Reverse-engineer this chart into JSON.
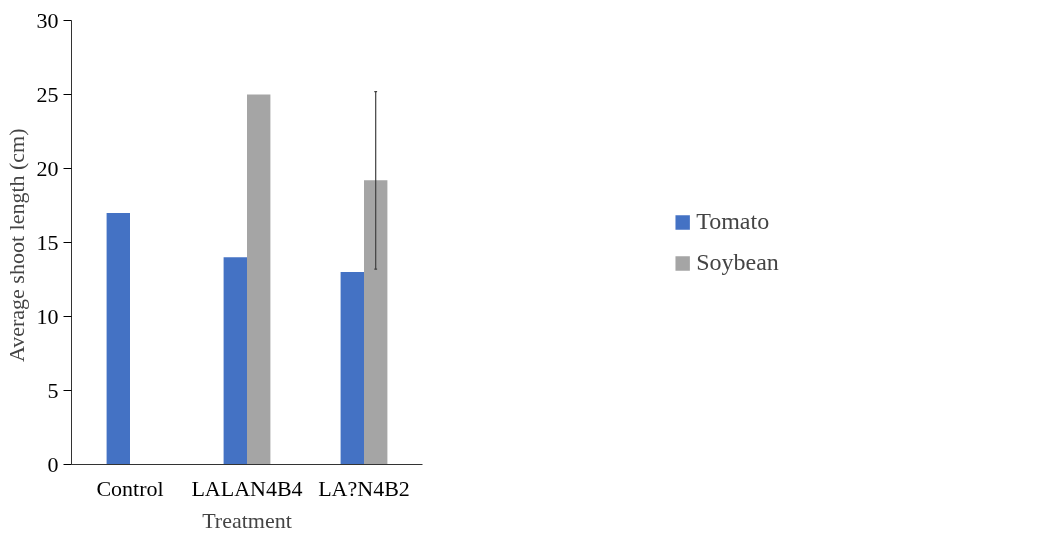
{
  "chart_data": {
    "type": "bar",
    "xlabel": "Treatment",
    "ylabel": "Average  shoot length (cm)",
    "categories": [
      "Control",
      "LALAN4B4",
      "LA?N4B2"
    ],
    "series": [
      {
        "name": "Tomato",
        "color": "#4472c4",
        "values": [
          17,
          14,
          13
        ]
      },
      {
        "name": "Soybean",
        "color": "#a5a5a5",
        "values": [
          null,
          25,
          19.2
        ],
        "errors": [
          null,
          null,
          6
        ]
      }
    ],
    "ylim": [
      0,
      30
    ],
    "yticks": [
      0,
      5,
      10,
      15,
      20,
      25,
      30
    ],
    "grid": false,
    "legend": "right"
  }
}
